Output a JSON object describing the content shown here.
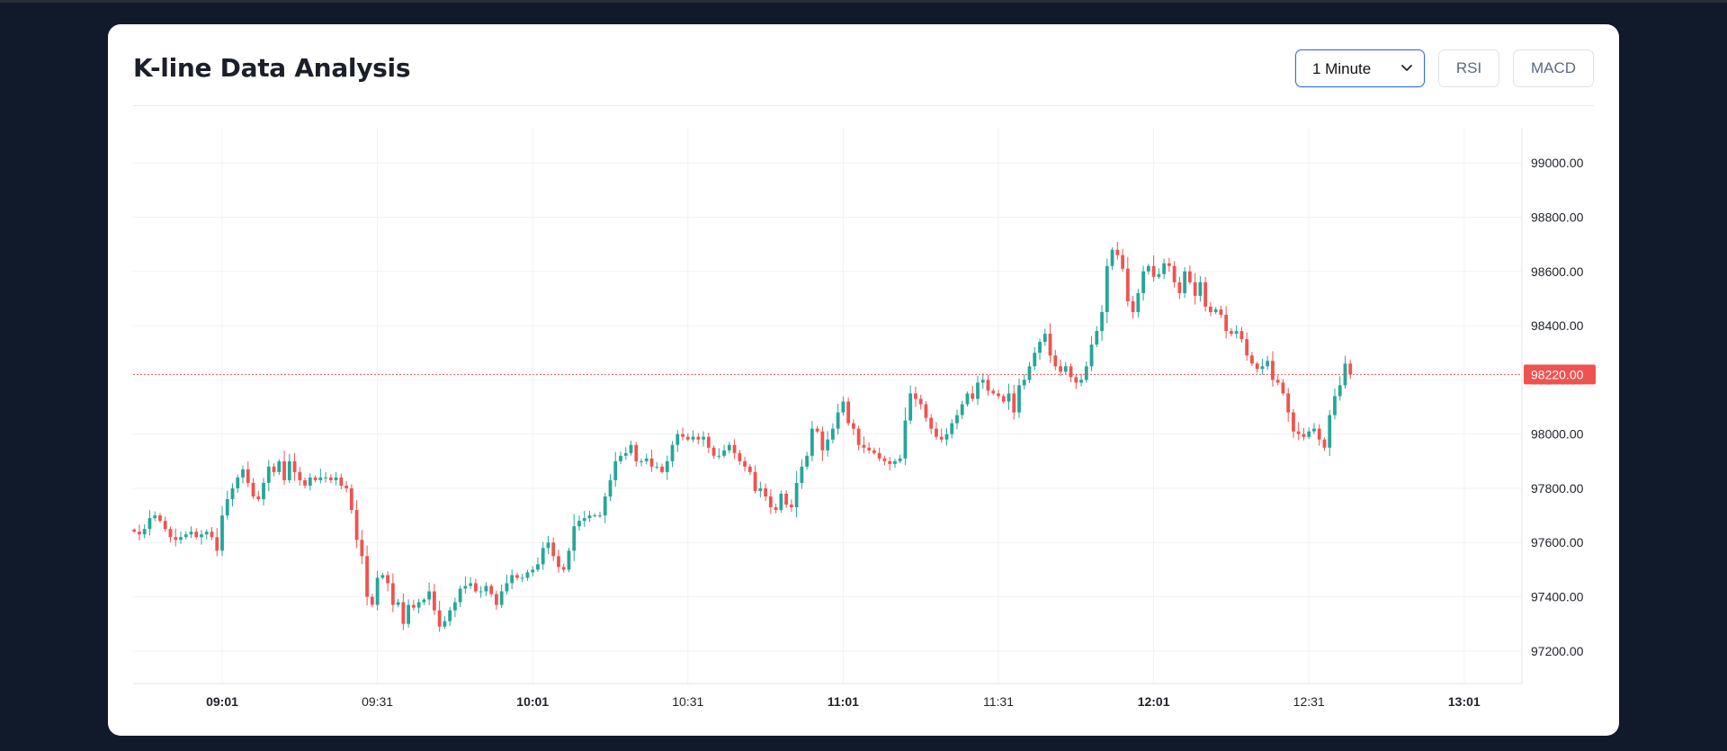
{
  "page_title": "K-line Data Analysis",
  "controls": {
    "interval_selected": "1 Minute",
    "rsi_label": "RSI",
    "macd_label": "MACD"
  },
  "colors": {
    "up": "#26a69a",
    "down": "#ef5350",
    "background": "#111a2b",
    "accent": "#3b6ddb"
  },
  "chart_data": {
    "type": "candlestick",
    "interval_minutes": 1,
    "ylim": [
      97080,
      99130
    ],
    "y_ticks": [
      "97200.00",
      "97400.00",
      "97600.00",
      "97800.00",
      "98000.00",
      "98200.00",
      "98400.00",
      "98600.00",
      "98800.00",
      "99000.00"
    ],
    "x_ticks": [
      {
        "label": "09:01",
        "bold": true
      },
      {
        "label": "09:31",
        "bold": false
      },
      {
        "label": "10:01",
        "bold": true
      },
      {
        "label": "10:31",
        "bold": false
      },
      {
        "label": "11:01",
        "bold": true
      },
      {
        "label": "11:31",
        "bold": false
      },
      {
        "label": "12:01",
        "bold": true
      },
      {
        "label": "12:31",
        "bold": false
      },
      {
        "label": "13:01",
        "bold": true
      }
    ],
    "x_tick_offsets_min": [
      0,
      30,
      60,
      90,
      120,
      150,
      180,
      210,
      240
    ],
    "first_candle_offset_min": -17,
    "last_price": "98220.00",
    "close_path": [
      97640,
      97630,
      97650,
      97690,
      97700,
      97680,
      97650,
      97620,
      97610,
      97620,
      97630,
      97640,
      97620,
      97630,
      97640,
      97620,
      97570,
      97700,
      97760,
      97800,
      97840,
      97870,
      97820,
      97770,
      97760,
      97820,
      97880,
      97860,
      97900,
      97830,
      97900,
      97860,
      97830,
      97810,
      97840,
      97830,
      97840,
      97840,
      97830,
      97840,
      97810,
      97800,
      97720,
      97610,
      97550,
      97400,
      97370,
      97470,
      97480,
      97450,
      97370,
      97380,
      97300,
      97370,
      97360,
      97380,
      97390,
      97420,
      97350,
      97290,
      97310,
      97350,
      97380,
      97430,
      97440,
      97450,
      97420,
      97420,
      97440,
      97410,
      97370,
      97420,
      97450,
      97480,
      97470,
      97470,
      97490,
      97500,
      97520,
      97580,
      97600,
      97550,
      97510,
      97500,
      97570,
      97660,
      97680,
      97690,
      97700,
      97700,
      97700,
      97770,
      97830,
      97900,
      97920,
      97930,
      97960,
      97900,
      97900,
      97910,
      97880,
      97880,
      97860,
      97900,
      97960,
      98000,
      97990,
      97980,
      97990,
      97980,
      97990,
      97950,
      97920,
      97920,
      97940,
      97960,
      97930,
      97900,
      97880,
      97860,
      97790,
      97800,
      97770,
      97730,
      97720,
      97780,
      97740,
      97730,
      97820,
      97880,
      97920,
      98020,
      98010,
      97940,
      97980,
      98020,
      98080,
      98120,
      98040,
      98020,
      97960,
      97950,
      97940,
      97930,
      97910,
      97900,
      97890,
      97900,
      97910,
      98050,
      98150,
      98130,
      98110,
      98060,
      98020,
      97990,
      97980,
      98000,
      98040,
      98070,
      98110,
      98150,
      98130,
      98190,
      98200,
      98160,
      98150,
      98140,
      98120,
      98150,
      98080,
      98180,
      98200,
      98250,
      98300,
      98340,
      98370,
      98290,
      98250,
      98230,
      98250,
      98210,
      98190,
      98200,
      98250,
      98330,
      98380,
      98450,
      98620,
      98680,
      98660,
      98610,
      98490,
      98450,
      98520,
      98600,
      98620,
      98580,
      98590,
      98630,
      98620,
      98560,
      98520,
      98600,
      98560,
      98510,
      98560,
      98470,
      98450,
      98460,
      98440,
      98380,
      98370,
      98380,
      98350,
      98290,
      98260,
      98240,
      98250,
      98270,
      98200,
      98190,
      98150,
      98080,
      98010,
      98000,
      97990,
      98010,
      98020,
      97980,
      97950,
      98070,
      98140,
      98180,
      98260,
      98220
    ]
  }
}
